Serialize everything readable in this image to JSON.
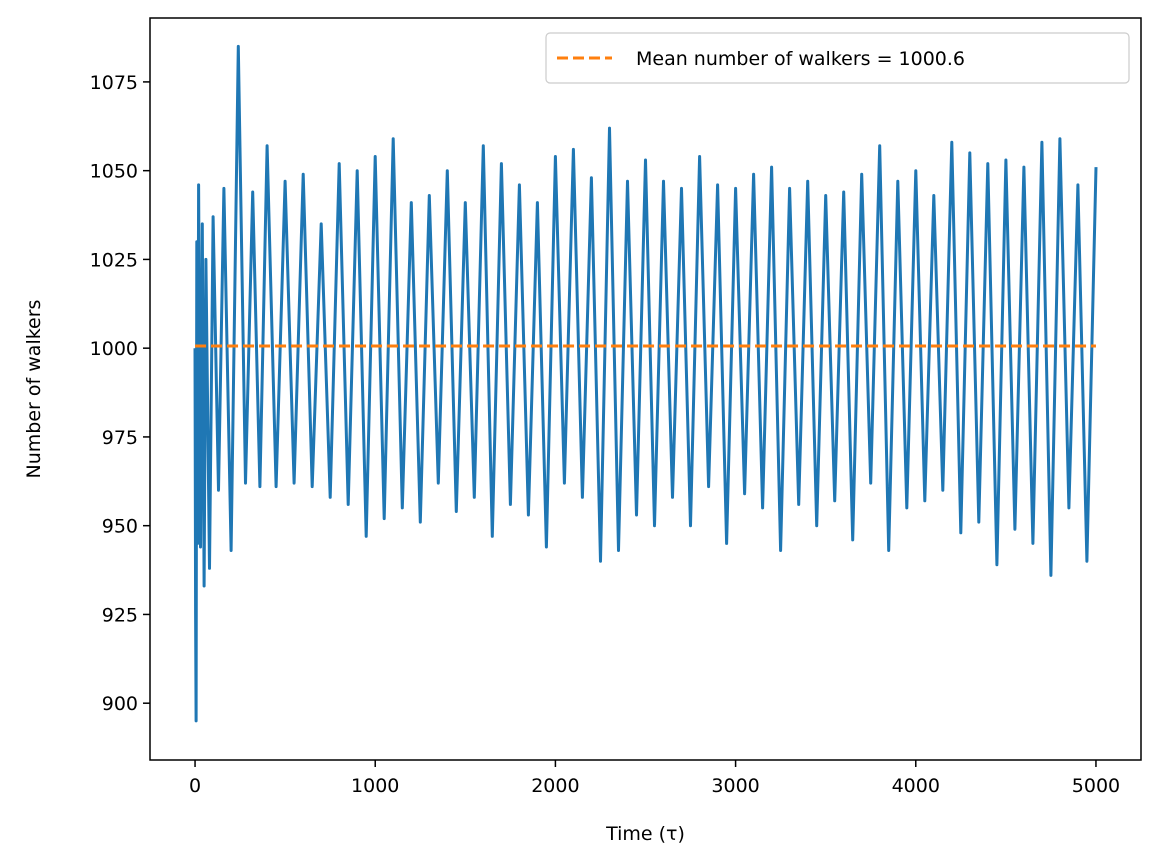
{
  "chart_data": {
    "type": "line",
    "xlabel": "Time (τ)",
    "ylabel": "Number of walkers",
    "xlim": [
      -250,
      5250
    ],
    "ylim": [
      884,
      1093
    ],
    "xticks": [
      0,
      1000,
      2000,
      3000,
      4000,
      5000
    ],
    "yticks": [
      900,
      925,
      950,
      975,
      1000,
      1025,
      1050,
      1075
    ],
    "grid": false,
    "legend_position": "top-right",
    "series": [
      {
        "name": "walkers",
        "color": "#1f77b4",
        "x": [
          0,
          3,
          6,
          10,
          15,
          20,
          30,
          40,
          50,
          60,
          80,
          100,
          130,
          160,
          200,
          240,
          280,
          320,
          360,
          400,
          450,
          500,
          550,
          600,
          650,
          700,
          750,
          800,
          850,
          900,
          950,
          1000,
          1050,
          1100,
          1150,
          1200,
          1250,
          1300,
          1350,
          1400,
          1450,
          1500,
          1550,
          1600,
          1650,
          1700,
          1750,
          1800,
          1850,
          1900,
          1950,
          2000,
          2050,
          2100,
          2150,
          2200,
          2250,
          2300,
          2350,
          2400,
          2450,
          2500,
          2550,
          2600,
          2650,
          2700,
          2750,
          2800,
          2850,
          2900,
          2950,
          3000,
          3050,
          3100,
          3150,
          3200,
          3250,
          3300,
          3350,
          3400,
          3450,
          3500,
          3550,
          3600,
          3650,
          3700,
          3750,
          3800,
          3850,
          3900,
          3950,
          4000,
          4050,
          4100,
          4150,
          4200,
          4250,
          4300,
          4350,
          4400,
          4450,
          4500,
          4550,
          4600,
          4650,
          4700,
          4750,
          4800,
          4850,
          4900,
          4950,
          5000
        ],
        "values": [
          1000,
          925,
          895,
          1030,
          945,
          1046,
          944,
          1035,
          933,
          1025,
          938,
          1037,
          960,
          1045,
          943,
          1085,
          962,
          1044,
          961,
          1057,
          961,
          1047,
          962,
          1049,
          961,
          1035,
          958,
          1052,
          956,
          1050,
          947,
          1054,
          952,
          1059,
          955,
          1041,
          951,
          1043,
          962,
          1050,
          954,
          1041,
          958,
          1057,
          947,
          1052,
          956,
          1046,
          953,
          1041,
          944,
          1054,
          962,
          1056,
          958,
          1048,
          940,
          1062,
          943,
          1047,
          953,
          1053,
          950,
          1047,
          958,
          1045,
          950,
          1054,
          961,
          1046,
          945,
          1045,
          959,
          1049,
          955,
          1051,
          943,
          1045,
          956,
          1047,
          950,
          1043,
          957,
          1044,
          946,
          1049,
          962,
          1057,
          943,
          1047,
          955,
          1050,
          957,
          1043,
          960,
          1058,
          948,
          1055,
          951,
          1052,
          939,
          1053,
          949,
          1051,
          945,
          1058,
          936,
          1059,
          955,
          1046,
          940,
          1051
        ]
      },
      {
        "name": "Mean number of walkers = 1000.6",
        "color": "#ff7f0e",
        "style": "dashed",
        "constant": 1000.6
      }
    ]
  }
}
